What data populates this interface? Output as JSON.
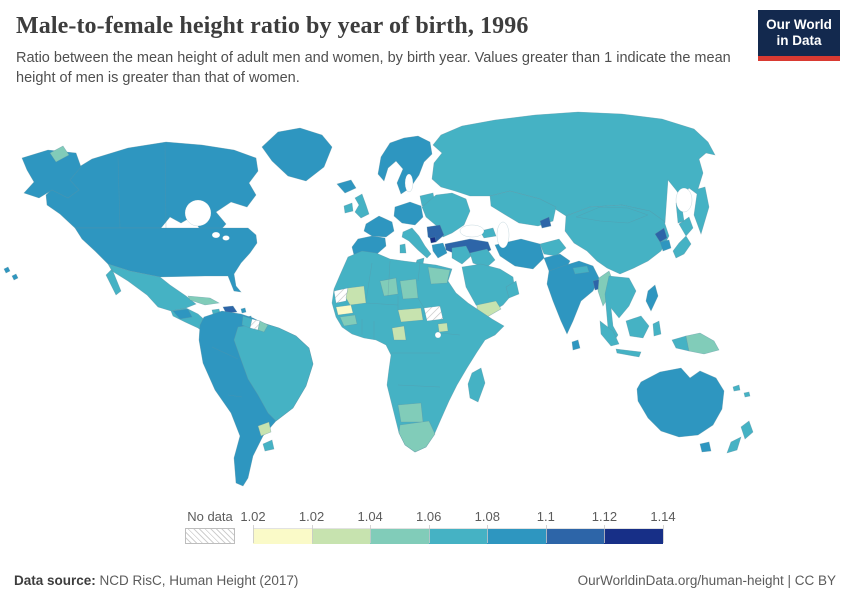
{
  "header": {
    "title": "Male-to-female height ratio by year of birth, 1996",
    "subtitle": "Ratio between the mean height of adult men and women, by birth year. Values greater than 1 indicate the mean height of men is greater than that of women.",
    "logo": {
      "line1": "Our World",
      "line2": "in Data",
      "bg_color": "#13294e",
      "stripe_color": "#d93a32"
    }
  },
  "legend": {
    "no_data_label": "No data",
    "tick_labels": [
      "1.02",
      "1.02",
      "1.04",
      "1.06",
      "1.08",
      "1.1",
      "1.12",
      "1.14"
    ],
    "bin_colors": [
      "#fafac8",
      "#c7e3af",
      "#81ccb9",
      "#45b2c4",
      "#2e96c0",
      "#2d65a8",
      "#172f87"
    ]
  },
  "footer": {
    "source_label": "Data source:",
    "source_value": " NCD RisC, Human Height (2017)",
    "link": "OurWorldinData.org/human-height | CC BY"
  },
  "chart_data": {
    "type": "heatmap",
    "subtype": "choropleth-world-map",
    "title": "Male-to-female height ratio by year of birth, 1996",
    "year": "1996",
    "unit": "ratio (mean male height / mean female height)",
    "legend_bin_edges": [
      "1.02",
      "1.02",
      "1.04",
      "1.06",
      "1.08",
      "1.1",
      "1.12",
      "1.14"
    ],
    "regions_by_bin": [
      {
        "range": "No data",
        "color": "hatch",
        "regions": [
          "Western Sahara",
          "South Sudan",
          "Suriname"
        ]
      },
      {
        "range": "1.02",
        "color": "#fafac8",
        "regions": [
          "Senegal",
          "Gambia"
        ]
      },
      {
        "range": "1.02-1.04",
        "color": "#c7e3af",
        "regions": [
          "Mauritania",
          "Yemen",
          "Gabon",
          "Congo",
          "Central African Republic",
          "Cameroon",
          "Uganda",
          "Paraguay"
        ]
      },
      {
        "range": "1.04-1.06",
        "color": "#81ccb9",
        "regions": [
          "Niger",
          "Chad",
          "Egypt",
          "Guinea",
          "South Africa",
          "Namibia",
          "Botswana",
          "Myanmar",
          "Papua New Guinea",
          "Cuba",
          "French Guiana"
        ]
      },
      {
        "range": "1.06-1.08",
        "color": "#45b2c4",
        "regions": [
          "Russia",
          "China",
          "Kazakhstan",
          "Mongolia",
          "Brazil",
          "Mexico",
          "United Kingdom",
          "Ireland",
          "Italy",
          "Ukraine",
          "Romania",
          "Algeria",
          "Libya",
          "Morocco",
          "Mali",
          "Nigeria",
          "Ethiopia",
          "Kenya",
          "Tanzania",
          "Angola",
          "Mozambique",
          "Madagascar",
          "Saudi Arabia",
          "Iraq",
          "Syria",
          "Afghanistan",
          "Thailand",
          "Vietnam",
          "Indonesia",
          "Japan",
          "New Zealand",
          "Guyana",
          "Uruguay",
          "Jamaica"
        ]
      },
      {
        "range": "1.08-1.1",
        "color": "#2e96c0",
        "regions": [
          "Canada",
          "United States",
          "Greenland",
          "Iceland",
          "Norway",
          "Sweden",
          "Finland",
          "France",
          "Spain",
          "Portugal",
          "Germany",
          "Poland",
          "Greece",
          "Iran",
          "Pakistan",
          "India",
          "Sri Lanka",
          "South Korea",
          "Philippines",
          "Australia",
          "Colombia",
          "Venezuela",
          "Ecuador",
          "Peru",
          "Bolivia",
          "Chile",
          "Argentina"
        ]
      },
      {
        "range": "1.1-1.12",
        "color": "#2d65a8",
        "regions": [
          "Turkey",
          "Bangladesh",
          "North Korea",
          "Serbia",
          "Bosnia and Herzegovina",
          "Tajikistan",
          "Haiti"
        ]
      },
      {
        "range": "1.12-1.14",
        "color": "#172f87",
        "regions": [
          "Montenegro"
        ]
      }
    ]
  },
  "map": {
    "palette": {
      "c1": "#fafac8",
      "c2": "#c7e3af",
      "c3": "#81ccb9",
      "c4": "#45b2c4",
      "c5": "#2e96c0",
      "c6": "#2d65a8",
      "c7": "#172f87"
    },
    "region_fills": {
      "greenland": "c5",
      "iceland": "c5",
      "canada": "c5",
      "alaska": "c5",
      "usa": "c5",
      "hawaii": "c5",
      "wrangel-island": "c3",
      "mexico": "c4",
      "central-america": "c4",
      "guatemala": "c5",
      "cuba": "c3",
      "hispaniola": "c6",
      "jamaica": "c4",
      "antilles": "c5",
      "south-america-west": "c5",
      "brazil": "c4",
      "guyana": "c4",
      "suriname": "noData",
      "french-guiana": "c3",
      "paraguay": "c2",
      "uruguay": "c4",
      "ireland": "c4",
      "uk": "c4",
      "scandinavia": "c5",
      "baltics": "c4",
      "iberia": "c5",
      "france": "c5",
      "central-europe": "c5",
      "italy": "c4",
      "eastern-europe": "c4",
      "balkans": "c6",
      "montenegro": "c7",
      "greece": "c5",
      "turkey": "c6",
      "russia": "c4",
      "sakhalin": "c4",
      "central-asia": "c4",
      "tajikistan": "c6",
      "caucasus": "c4",
      "levant": "c4",
      "iraq": "c4",
      "iran": "c5",
      "arabia": "c4",
      "yemen": "c2",
      "oman": "c4",
      "afghanistan": "c4",
      "pakistan": "c5",
      "india": "c5",
      "sri-lanka": "c5",
      "nepal": "c4",
      "bangladesh": "c6",
      "china": "c4",
      "myanmar": "c3",
      "indochina": "c4",
      "north-korea": "c6",
      "south-korea": "c5",
      "japan": "c4",
      "philippines": "c5",
      "sumatra": "c4",
      "java": "c4",
      "borneo": "c4",
      "sulawesi": "c4",
      "west-papua": "c4",
      "papua-new-guinea": "c3",
      "australia": "c5",
      "tasmania": "c5",
      "new-zealand": "c4",
      "pacific-islands": "c4",
      "africa-base": "c4",
      "western-sahara": "noData",
      "mauritania": "c2",
      "senegal": "c1",
      "guinea-region": "c3",
      "niger": "c3",
      "chad": "c3",
      "egypt": "c3",
      "south-sudan": "noData",
      "car-cameroon": "c2",
      "gabon-congo": "c2",
      "uganda": "c2",
      "namibia-botswana": "c3",
      "south-africa": "c3",
      "madagascar": "c4"
    }
  }
}
